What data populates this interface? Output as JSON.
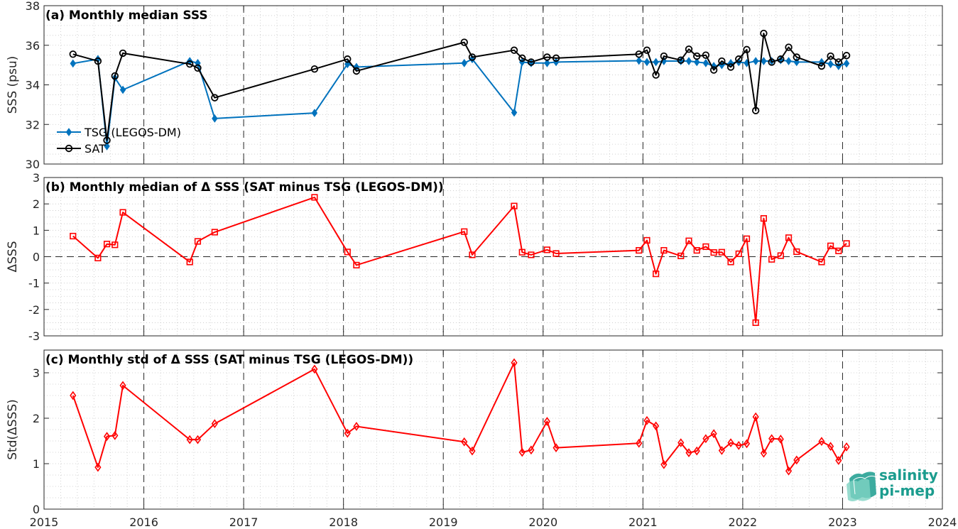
{
  "chart_data": [
    {
      "type": "line",
      "title": "(a) Monthly median SSS",
      "ylabel": "SSS (psu)",
      "ylim": [
        30,
        38
      ],
      "yticks": [
        "30",
        "32",
        "34",
        "36",
        "38"
      ],
      "legend_position": "bottom-left",
      "series": [
        {
          "name": "TSG (LEGOS-DM)",
          "color": "#0072BD",
          "marker": "diamond",
          "x": [
            2015.29,
            2015.54,
            2015.63,
            2015.71,
            2015.79,
            2016.46,
            2016.54,
            2016.71,
            2017.71,
            2018.04,
            2018.13,
            2019.21,
            2019.29,
            2019.71,
            2019.79,
            2019.88,
            2020.04,
            2020.13,
            2020.96,
            2021.04,
            2021.13,
            2021.21,
            2021.38,
            2021.46,
            2021.54,
            2021.63,
            2021.71,
            2021.79,
            2021.88,
            2021.96,
            2022.04,
            2022.13,
            2022.21,
            2022.29,
            2022.38,
            2022.46,
            2022.54,
            2022.79,
            2022.88,
            2022.96,
            2023.04
          ],
          "y": [
            35.08,
            35.3,
            30.9,
            34.35,
            33.75,
            35.2,
            35.1,
            32.3,
            32.58,
            35.05,
            34.9,
            35.1,
            35.3,
            32.6,
            35.15,
            35.1,
            35.1,
            35.15,
            35.22,
            35.15,
            35.15,
            35.2,
            35.2,
            35.2,
            35.15,
            35.1,
            34.95,
            35.0,
            35.1,
            35.15,
            35.1,
            35.2,
            35.2,
            35.2,
            35.25,
            35.2,
            35.15,
            35.15,
            35.05,
            34.95,
            35.08
          ]
        },
        {
          "name": "SAT",
          "color": "#000000",
          "marker": "circle",
          "x": [
            2015.29,
            2015.54,
            2015.63,
            2015.71,
            2015.79,
            2016.46,
            2016.54,
            2016.71,
            2017.71,
            2018.04,
            2018.13,
            2019.21,
            2019.29,
            2019.71,
            2019.79,
            2019.88,
            2020.04,
            2020.13,
            2020.96,
            2021.04,
            2021.13,
            2021.21,
            2021.38,
            2021.46,
            2021.54,
            2021.63,
            2021.71,
            2021.79,
            2021.88,
            2021.96,
            2022.04,
            2022.13,
            2022.21,
            2022.29,
            2022.38,
            2022.46,
            2022.54,
            2022.79,
            2022.88,
            2022.96,
            2023.04
          ],
          "y": [
            35.55,
            35.2,
            31.2,
            34.45,
            35.6,
            35.05,
            34.85,
            33.35,
            34.8,
            35.3,
            34.7,
            36.15,
            35.4,
            35.75,
            35.35,
            35.15,
            35.4,
            35.35,
            35.55,
            35.75,
            34.5,
            35.45,
            35.25,
            35.8,
            35.45,
            35.5,
            34.75,
            35.2,
            34.9,
            35.3,
            35.78,
            32.7,
            36.6,
            35.15,
            35.3,
            35.9,
            35.4,
            34.95,
            35.45,
            35.15,
            35.48
          ]
        }
      ]
    },
    {
      "type": "line",
      "title": "(b) Monthly median of Δ SSS (SAT minus TSG (LEGOS-DM))",
      "ylabel": "ΔSSS",
      "ylim": [
        -3,
        3
      ],
      "yticks": [
        "-3",
        "-2",
        "-1",
        "0",
        "1",
        "2",
        "3"
      ],
      "reference_line": 0,
      "series": [
        {
          "name": "",
          "color": "#FF0000",
          "marker": "square",
          "x": [
            2015.29,
            2015.54,
            2015.63,
            2015.71,
            2015.79,
            2016.46,
            2016.54,
            2016.71,
            2017.71,
            2018.04,
            2018.13,
            2019.21,
            2019.29,
            2019.71,
            2019.79,
            2019.88,
            2020.04,
            2020.13,
            2020.96,
            2021.04,
            2021.13,
            2021.21,
            2021.38,
            2021.46,
            2021.54,
            2021.63,
            2021.71,
            2021.79,
            2021.88,
            2021.96,
            2022.04,
            2022.13,
            2022.21,
            2022.29,
            2022.38,
            2022.46,
            2022.54,
            2022.79,
            2022.88,
            2022.96,
            2023.04
          ],
          "y": [
            0.78,
            -0.05,
            0.48,
            0.45,
            1.68,
            -0.2,
            0.58,
            0.93,
            2.25,
            0.18,
            -0.32,
            0.95,
            0.07,
            1.92,
            0.17,
            0.07,
            0.26,
            0.12,
            0.24,
            0.62,
            -0.65,
            0.24,
            0.03,
            0.6,
            0.24,
            0.38,
            0.16,
            0.17,
            -0.2,
            0.11,
            0.68,
            -2.5,
            1.45,
            -0.1,
            0.04,
            0.72,
            0.19,
            -0.2,
            0.41,
            0.22,
            0.5
          ]
        }
      ]
    },
    {
      "type": "line",
      "title": "(c) Monthly std of Δ SSS (SAT minus TSG (LEGOS-DM))",
      "ylabel": "Std(ΔSSS)",
      "ylim": [
        0,
        3.5
      ],
      "yticks": [
        "0",
        "1",
        "2",
        "3"
      ],
      "xlim": [
        2015,
        2024
      ],
      "xticks": [
        "2015",
        "2016",
        "2017",
        "2018",
        "2019",
        "2020",
        "2021",
        "2022",
        "2023",
        "2024"
      ],
      "series": [
        {
          "name": "",
          "color": "#FF0000",
          "marker": "diamond",
          "x": [
            2015.29,
            2015.54,
            2015.63,
            2015.71,
            2015.79,
            2016.46,
            2016.54,
            2016.71,
            2017.71,
            2018.04,
            2018.13,
            2019.21,
            2019.29,
            2019.71,
            2019.79,
            2019.88,
            2020.04,
            2020.13,
            2020.96,
            2021.04,
            2021.13,
            2021.21,
            2021.38,
            2021.46,
            2021.54,
            2021.63,
            2021.71,
            2021.79,
            2021.88,
            2021.96,
            2022.04,
            2022.13,
            2022.21,
            2022.29,
            2022.38,
            2022.46,
            2022.54,
            2022.79,
            2022.88,
            2022.96,
            2023.04
          ],
          "y": [
            2.5,
            0.92,
            1.6,
            1.62,
            2.72,
            1.53,
            1.53,
            1.88,
            3.08,
            1.67,
            1.82,
            1.48,
            1.28,
            3.22,
            1.25,
            1.3,
            1.93,
            1.35,
            1.45,
            1.95,
            1.83,
            0.98,
            1.46,
            1.24,
            1.28,
            1.55,
            1.66,
            1.29,
            1.46,
            1.4,
            1.44,
            2.03,
            1.23,
            1.55,
            1.54,
            0.84,
            1.08,
            1.49,
            1.38,
            1.07,
            1.37
          ]
        }
      ]
    }
  ],
  "logo": {
    "line1": "salinity",
    "line2": "pi-mep",
    "color": "#1b9c8e"
  }
}
